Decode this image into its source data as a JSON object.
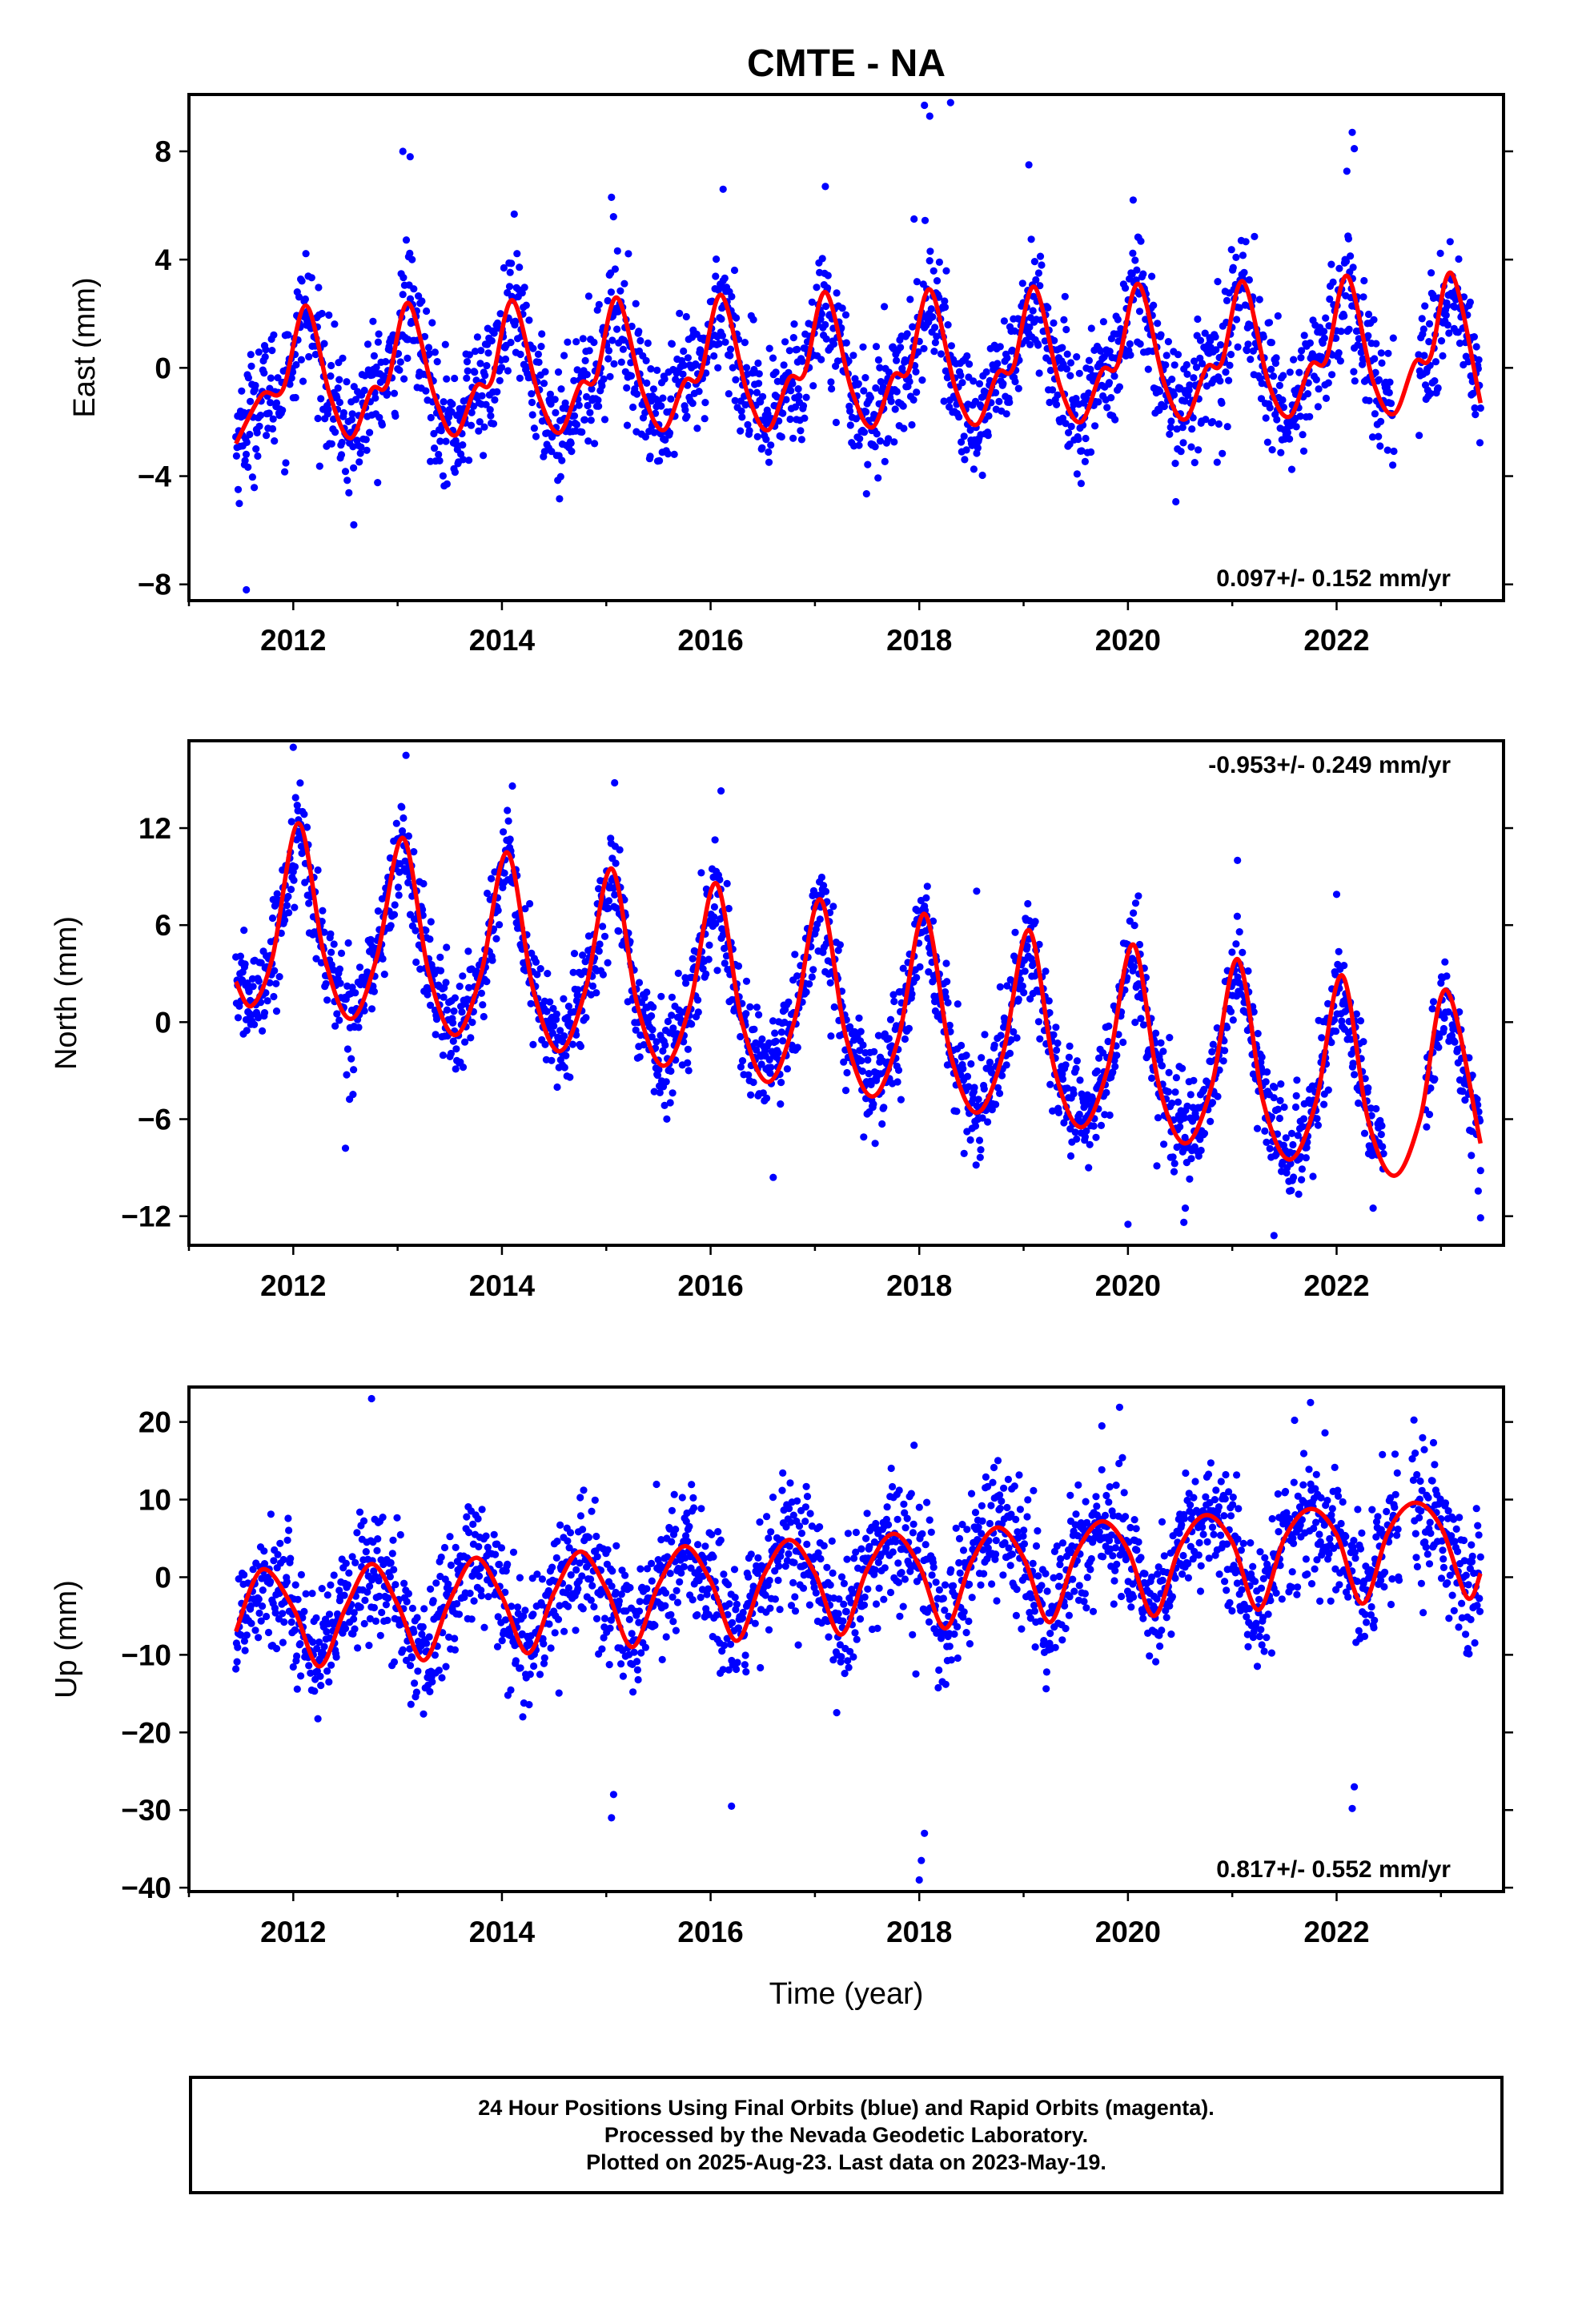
{
  "title": "CMTE - NA",
  "xlabel": "Time (year)",
  "footer": {
    "line1": "24 Hour Positions Using Final Orbits (blue) and Rapid Orbits (magenta).",
    "line2": "Processed by the Nevada Geodetic Laboratory.",
    "line3": "Plotted on 2025-Aug-23. Last data on 2023-May-19."
  },
  "colors": {
    "points": "#0000ff",
    "model": "#ff0000",
    "frame": "#000000"
  },
  "chart_data": [
    {
      "type": "scatter",
      "ylabel": "East (mm)",
      "rate_text": "0.097+/- 0.152 mm/yr",
      "rate_position": "bottom-right",
      "xlim": [
        2011.0,
        2023.6
      ],
      "ylim": [
        -8.6,
        10.1
      ],
      "xticks": [
        2012,
        2014,
        2016,
        2018,
        2020,
        2022
      ],
      "yticks": [
        -8,
        -4,
        0,
        4,
        8
      ],
      "ytick_labels": [
        "−8",
        "−4",
        "0",
        "4",
        "8"
      ],
      "model": {
        "type": "line",
        "x": [
          2011.45,
          2011.7,
          2011.9,
          2012.12,
          2012.35,
          2012.55,
          2012.75,
          2012.9,
          2013.1,
          2013.35,
          2013.55,
          2013.75,
          2013.9,
          2014.1,
          2014.35,
          2014.55,
          2014.75,
          2014.9,
          2015.1,
          2015.35,
          2015.55,
          2015.75,
          2015.9,
          2016.1,
          2016.35,
          2016.55,
          2016.75,
          2016.9,
          2017.1,
          2017.35,
          2017.55,
          2017.75,
          2017.9,
          2018.1,
          2018.35,
          2018.55,
          2018.75,
          2018.9,
          2019.1,
          2019.35,
          2019.55,
          2019.75,
          2019.9,
          2020.1,
          2020.35,
          2020.55,
          2020.75,
          2020.9,
          2021.1,
          2021.35,
          2021.55,
          2021.75,
          2021.9,
          2022.1,
          2022.35,
          2022.55,
          2022.75,
          2022.9,
          2023.1,
          2023.38
        ],
        "y": [
          -2.8,
          -1.0,
          -0.8,
          2.3,
          -1.0,
          -2.6,
          -0.8,
          -0.6,
          2.4,
          -1.0,
          -2.5,
          -0.7,
          -0.5,
          2.5,
          -1.0,
          -2.4,
          -0.6,
          -0.4,
          2.6,
          -0.9,
          -2.3,
          -0.5,
          -0.3,
          2.7,
          -0.9,
          -2.3,
          -0.4,
          -0.2,
          2.8,
          -0.8,
          -2.2,
          -0.3,
          -0.1,
          2.9,
          -0.8,
          -2.1,
          -0.2,
          0.0,
          3.0,
          -0.7,
          -2.0,
          -0.1,
          0.1,
          3.1,
          -0.6,
          -1.9,
          0.0,
          0.2,
          3.2,
          -0.6,
          -1.8,
          0.1,
          0.3,
          3.4,
          -0.5,
          -1.7,
          0.2,
          0.4,
          3.5,
          -1.3
        ]
      },
      "outliers": {
        "x": [
          2011.55,
          2012.58,
          2013.05,
          2013.12,
          2015.05,
          2016.12,
          2017.1,
          2017.95,
          2018.05,
          2018.1,
          2018.3,
          2019.05,
          2020.05,
          2022.15,
          2022.17
        ],
        "y": [
          -8.2,
          -5.8,
          8.0,
          7.8,
          6.3,
          6.6,
          6.7,
          5.5,
          9.7,
          9.3,
          9.8,
          7.5,
          6.2,
          8.7,
          8.1
        ]
      }
    },
    {
      "type": "scatter",
      "ylabel": "North (mm)",
      "rate_text": "-0.953+/- 0.249 mm/yr",
      "rate_position": "top-right",
      "xlim": [
        2011.0,
        2023.6
      ],
      "ylim": [
        -13.8,
        17.4
      ],
      "xticks": [
        2012,
        2014,
        2016,
        2018,
        2020,
        2022
      ],
      "yticks": [
        -12,
        -6,
        0,
        6,
        12
      ],
      "ytick_labels": [
        "−12",
        "−6",
        "0",
        "6",
        "12"
      ],
      "model": {
        "type": "line",
        "x": [
          2011.45,
          2011.6,
          2011.8,
          2012.05,
          2012.3,
          2012.55,
          2012.8,
          2013.05,
          2013.3,
          2013.55,
          2013.8,
          2014.05,
          2014.3,
          2014.55,
          2014.8,
          2015.05,
          2015.3,
          2015.55,
          2015.8,
          2016.05,
          2016.3,
          2016.55,
          2016.8,
          2017.05,
          2017.3,
          2017.55,
          2017.8,
          2018.05,
          2018.3,
          2018.55,
          2018.8,
          2019.05,
          2019.3,
          2019.55,
          2019.8,
          2020.05,
          2020.3,
          2020.55,
          2020.8,
          2021.05,
          2021.3,
          2021.55,
          2021.8,
          2022.05,
          2022.3,
          2022.55,
          2022.8,
          2023.05,
          2023.38
        ],
        "y": [
          2.5,
          1.0,
          4.0,
          12.3,
          4.0,
          0.2,
          4.0,
          11.4,
          3.0,
          -0.8,
          3.0,
          10.5,
          2.0,
          -1.8,
          2.0,
          9.5,
          1.0,
          -2.7,
          1.0,
          8.6,
          0.0,
          -3.7,
          0.0,
          7.6,
          -1.0,
          -4.6,
          -1.0,
          6.7,
          -2.0,
          -5.6,
          -2.0,
          5.7,
          -3.0,
          -6.5,
          -3.0,
          4.8,
          -4.0,
          -7.5,
          -4.0,
          3.9,
          -5.0,
          -8.5,
          -5.0,
          2.9,
          -6.0,
          -9.5,
          -6.0,
          2.0,
          -7.5
        ]
      },
      "outliers": {
        "x": [
          2012.0,
          2013.08,
          2014.1,
          2015.08,
          2016.1,
          2018.55,
          2020.1,
          2021.05,
          2022.0,
          2012.5,
          2016.6,
          2020.0,
          2020.55,
          2021.4,
          2022.35,
          2023.38
        ],
        "y": [
          17.0,
          16.5,
          14.6,
          14.8,
          14.3,
          8.1,
          7.8,
          10.0,
          7.9,
          -7.8,
          -9.6,
          -12.5,
          -11.5,
          -13.2,
          -11.5,
          -12.1
        ]
      }
    },
    {
      "type": "scatter",
      "ylabel": "Up (mm)",
      "rate_text": "0.817+/- 0.552 mm/yr",
      "rate_position": "bottom-right",
      "xlim": [
        2011.0,
        2023.6
      ],
      "ylim": [
        -40.5,
        24.5
      ],
      "xticks": [
        2012,
        2014,
        2016,
        2018,
        2020,
        2022
      ],
      "yticks": [
        -40,
        -30,
        -20,
        -10,
        0,
        10,
        20
      ],
      "ytick_labels": [
        "−40",
        "−30",
        "−20",
        "−10",
        "0",
        "10",
        "20"
      ],
      "model": {
        "type": "line",
        "x": [
          2011.45,
          2011.7,
          2012.0,
          2012.25,
          2012.5,
          2012.75,
          2013.0,
          2013.25,
          2013.5,
          2013.75,
          2014.0,
          2014.25,
          2014.5,
          2014.75,
          2015.0,
          2015.25,
          2015.5,
          2015.75,
          2016.0,
          2016.25,
          2016.5,
          2016.75,
          2017.0,
          2017.25,
          2017.5,
          2017.75,
          2018.0,
          2018.25,
          2018.5,
          2018.75,
          2019.0,
          2019.25,
          2019.5,
          2019.75,
          2020.0,
          2020.25,
          2020.5,
          2020.75,
          2021.0,
          2021.25,
          2021.5,
          2021.75,
          2022.0,
          2022.25,
          2022.5,
          2022.75,
          2023.0,
          2023.25,
          2023.38
        ],
        "y": [
          -7.0,
          1.0,
          -4.0,
          -11.5,
          -4.0,
          1.7,
          -3.5,
          -10.7,
          -3.0,
          2.5,
          -2.5,
          -9.8,
          -2.0,
          3.3,
          -1.5,
          -9.0,
          -1.0,
          4.0,
          -0.5,
          -8.2,
          0.0,
          4.8,
          0.5,
          -7.4,
          1.0,
          5.6,
          1.5,
          -6.6,
          2.0,
          6.4,
          2.5,
          -5.8,
          3.0,
          7.2,
          3.5,
          -5.0,
          4.0,
          8.0,
          4.5,
          -4.2,
          5.0,
          8.8,
          5.5,
          -3.4,
          6.0,
          9.6,
          6.5,
          -2.6,
          0.5
        ]
      },
      "outliers": {
        "x": [
          2012.75,
          2015.05,
          2015.07,
          2016.2,
          2018.0,
          2018.02,
          2018.05,
          2022.15,
          2022.17,
          2021.75,
          2019.75,
          2017.95
        ],
        "y": [
          23.0,
          -31.0,
          -28.0,
          -29.5,
          -39.0,
          -36.5,
          -33.0,
          -29.8,
          -27.0,
          22.5,
          19.5,
          17.0
        ]
      }
    }
  ]
}
